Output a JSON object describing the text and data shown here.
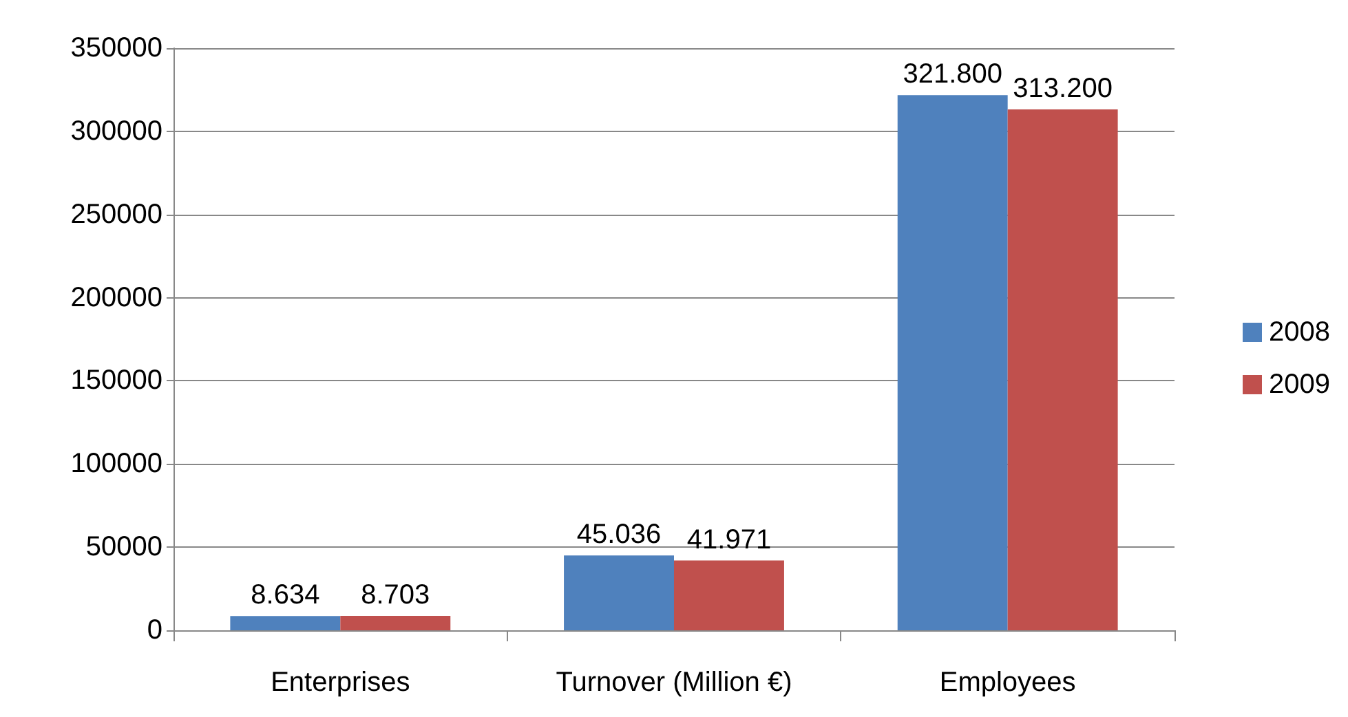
{
  "chart_data": {
    "type": "bar",
    "categories": [
      "Enterprises",
      "Turnover (Million €)",
      "Employees"
    ],
    "series": [
      {
        "name": "2008",
        "color": "#4f81bd",
        "values": [
          8634,
          45036,
          321800
        ],
        "value_labels": [
          "8.634",
          "45.036",
          "321.800"
        ]
      },
      {
        "name": "2009",
        "color": "#c0504d",
        "values": [
          8703,
          41971,
          313200
        ],
        "value_labels": [
          "8.703",
          "41.971",
          "313.200"
        ]
      }
    ],
    "ylim": [
      0,
      350000
    ],
    "yticks": [
      0,
      50000,
      100000,
      150000,
      200000,
      250000,
      300000,
      350000
    ],
    "grid": "y",
    "legend": "right"
  }
}
